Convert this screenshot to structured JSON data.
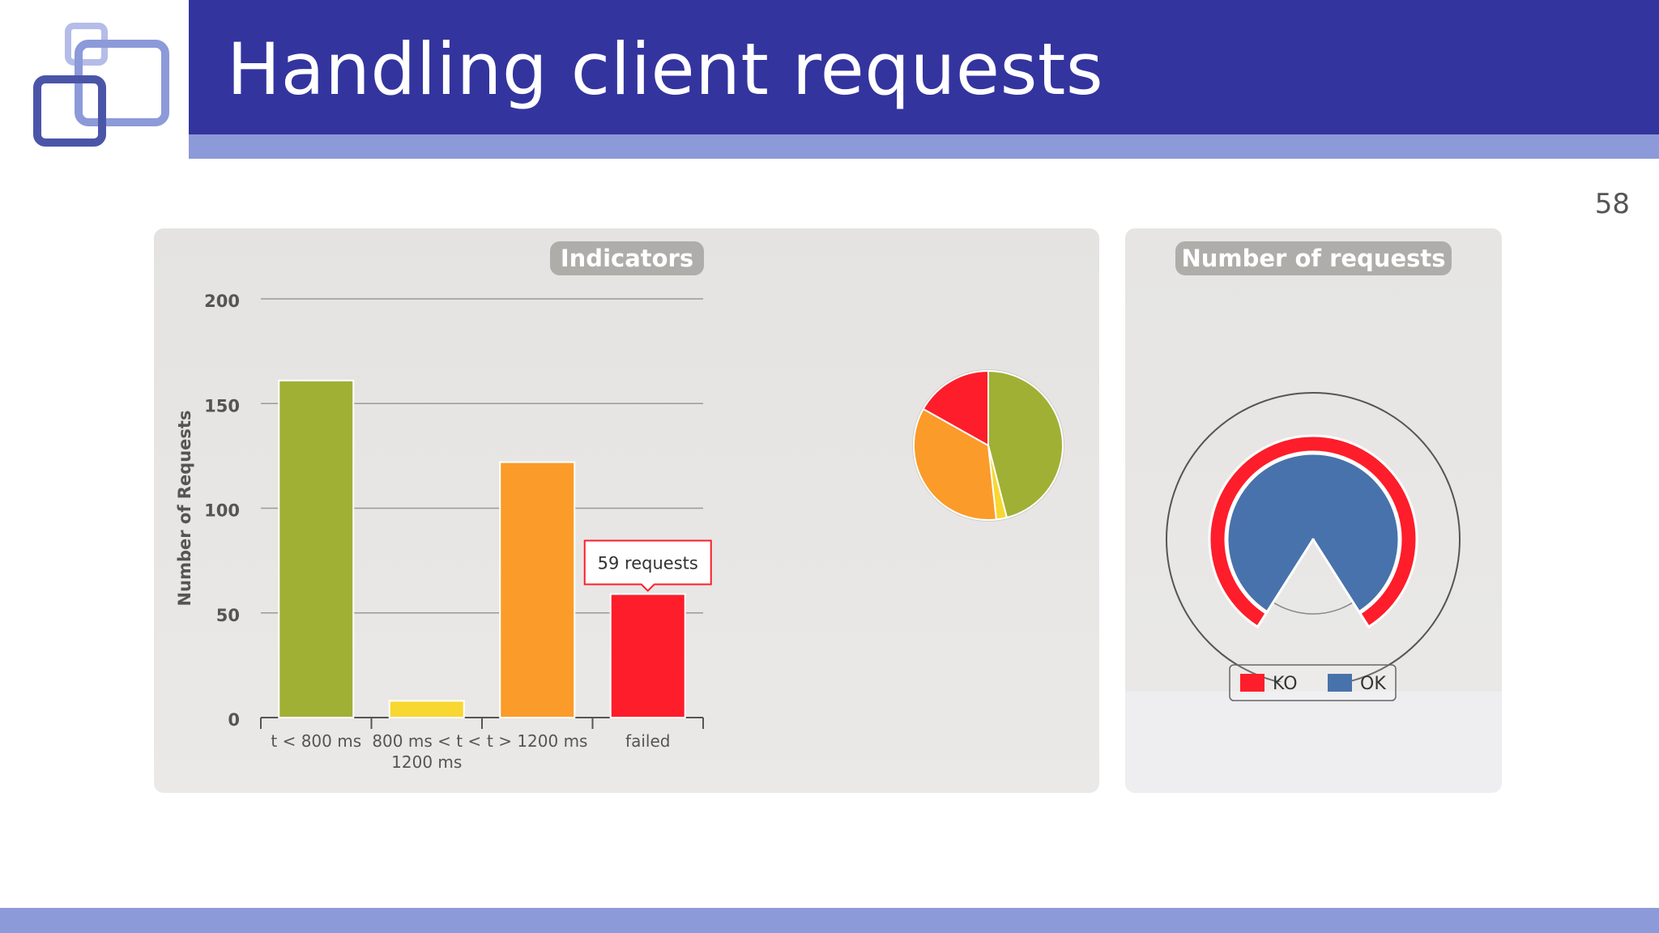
{
  "slide": {
    "title": "Handling client requests",
    "page_number": "58"
  },
  "colors": {
    "header": "#33349e",
    "accent": "#8c9ad9",
    "green": "#a0b035",
    "yellow": "#f8d731",
    "orange": "#fb9b29",
    "red": "#fe1d2a",
    "blue": "#4872ab"
  },
  "indicators_panel": {
    "title": "Indicators"
  },
  "requests_panel": {
    "title": "Number of requests",
    "legend": [
      {
        "label": "KO",
        "color": "#fe1d2a"
      },
      {
        "label": "OK",
        "color": "#4872ab"
      }
    ]
  },
  "tooltip": {
    "text": "59 requests"
  },
  "chart_data": [
    {
      "type": "bar",
      "title": "Indicators",
      "ylabel": "Number of Requests",
      "ylim": [
        0,
        200
      ],
      "yticks": [
        0,
        50,
        100,
        150,
        200
      ],
      "grid": true,
      "categories": [
        "t < 800 ms",
        "800 ms < t < 1200 ms",
        "t > 1200 ms",
        "failed"
      ],
      "category_lines": [
        [
          "t < 800 ms"
        ],
        [
          "800 ms < t <",
          "1200 ms"
        ],
        [
          "t > 1200 ms"
        ],
        [
          "failed"
        ]
      ],
      "values": [
        161,
        8,
        122,
        59
      ],
      "colors": [
        "#a0b035",
        "#f8d731",
        "#fb9b29",
        "#fe1d2a"
      ]
    },
    {
      "type": "pie",
      "categories": [
        "t < 800 ms",
        "800 ms < t < 1200 ms",
        "t > 1200 ms",
        "failed"
      ],
      "values": [
        161,
        8,
        122,
        59
      ],
      "colors": [
        "#a0b035",
        "#f8d731",
        "#fb9b29",
        "#fe1d2a"
      ]
    },
    {
      "type": "pie",
      "title": "Number of requests",
      "categories": [
        "KO",
        "OK"
      ],
      "values": [
        59,
        291
      ],
      "colors": [
        "#fe1d2a",
        "#4872ab"
      ]
    }
  ]
}
